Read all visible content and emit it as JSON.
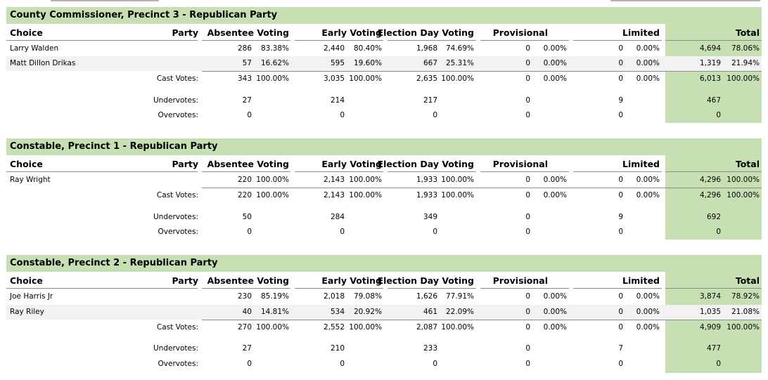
{
  "columns": {
    "choice": "Choice",
    "party": "Party",
    "absentee": "Absentee Voting",
    "early": "Early Voting",
    "election_day": "Election Day Voting",
    "provisional": "Provisional",
    "limited": "Limited",
    "total": "Total"
  },
  "labels": {
    "cast": "Cast Votes:",
    "under": "Undervotes:",
    "over": "Overvotes:"
  },
  "colors": {
    "header_green": "#c6e0b4",
    "row_shade": "#f2f2f2"
  },
  "sections": [
    {
      "title": "County Commissioner, Precinct 3 - Republican Party",
      "candidates": [
        {
          "name": "Larry Walden",
          "abs_v": "286",
          "abs_p": "83.38%",
          "early_v": "2,440",
          "early_p": "80.40%",
          "ed_v": "1,968",
          "ed_p": "74.69%",
          "prov_v": "0",
          "prov_p": "0.00%",
          "lim_v": "0",
          "lim_p": "0.00%",
          "tot_v": "4,694",
          "tot_p": "78.06%"
        },
        {
          "name": "Matt Dillon Drikas",
          "abs_v": "57",
          "abs_p": "16.62%",
          "early_v": "595",
          "early_p": "19.60%",
          "ed_v": "667",
          "ed_p": "25.31%",
          "prov_v": "0",
          "prov_p": "0.00%",
          "lim_v": "0",
          "lim_p": "0.00%",
          "tot_v": "1,319",
          "tot_p": "21.94%"
        }
      ],
      "cast": {
        "abs_v": "343",
        "abs_p": "100.00%",
        "early_v": "3,035",
        "early_p": "100.00%",
        "ed_v": "2,635",
        "ed_p": "100.00%",
        "prov_v": "0",
        "prov_p": "0.00%",
        "lim_v": "0",
        "lim_p": "0.00%",
        "tot_v": "6,013",
        "tot_p": "100.00%"
      },
      "under": {
        "abs": "27",
        "early": "214",
        "ed": "217",
        "prov": "0",
        "lim": "9",
        "tot": "467"
      },
      "over": {
        "abs": "0",
        "early": "0",
        "ed": "0",
        "prov": "0",
        "lim": "0",
        "tot": "0"
      }
    },
    {
      "title": "Constable, Precinct 1 - Republican Party",
      "candidates": [
        {
          "name": "Ray Wright",
          "abs_v": "220",
          "abs_p": "100.00%",
          "early_v": "2,143",
          "early_p": "100.00%",
          "ed_v": "1,933",
          "ed_p": "100.00%",
          "prov_v": "0",
          "prov_p": "0.00%",
          "lim_v": "0",
          "lim_p": "0.00%",
          "tot_v": "4,296",
          "tot_p": "100.00%"
        }
      ],
      "cast": {
        "abs_v": "220",
        "abs_p": "100.00%",
        "early_v": "2,143",
        "early_p": "100.00%",
        "ed_v": "1,933",
        "ed_p": "100.00%",
        "prov_v": "0",
        "prov_p": "0.00%",
        "lim_v": "0",
        "lim_p": "0.00%",
        "tot_v": "4,296",
        "tot_p": "100.00%"
      },
      "under": {
        "abs": "50",
        "early": "284",
        "ed": "349",
        "prov": "0",
        "lim": "9",
        "tot": "692"
      },
      "over": {
        "abs": "0",
        "early": "0",
        "ed": "0",
        "prov": "0",
        "lim": "0",
        "tot": "0"
      }
    },
    {
      "title": "Constable, Precinct 2 - Republican Party",
      "candidates": [
        {
          "name": "Joe Harris Jr",
          "abs_v": "230",
          "abs_p": "85.19%",
          "early_v": "2,018",
          "early_p": "79.08%",
          "ed_v": "1,626",
          "ed_p": "77.91%",
          "prov_v": "0",
          "prov_p": "0.00%",
          "lim_v": "0",
          "lim_p": "0.00%",
          "tot_v": "3,874",
          "tot_p": "78.92%"
        },
        {
          "name": "Ray Riley",
          "abs_v": "40",
          "abs_p": "14.81%",
          "early_v": "534",
          "early_p": "20.92%",
          "ed_v": "461",
          "ed_p": "22.09%",
          "prov_v": "0",
          "prov_p": "0.00%",
          "lim_v": "0",
          "lim_p": "0.00%",
          "tot_v": "1,035",
          "tot_p": "21.08%"
        }
      ],
      "cast": {
        "abs_v": "270",
        "abs_p": "100.00%",
        "early_v": "2,552",
        "early_p": "100.00%",
        "ed_v": "2,087",
        "ed_p": "100.00%",
        "prov_v": "0",
        "prov_p": "0.00%",
        "lim_v": "0",
        "lim_p": "0.00%",
        "tot_v": "4,909",
        "tot_p": "100.00%"
      },
      "under": {
        "abs": "27",
        "early": "210",
        "ed": "233",
        "prov": "0",
        "lim": "7",
        "tot": "477"
      },
      "over": {
        "abs": "0",
        "early": "0",
        "ed": "0",
        "prov": "0",
        "lim": "0",
        "tot": "0"
      }
    }
  ]
}
